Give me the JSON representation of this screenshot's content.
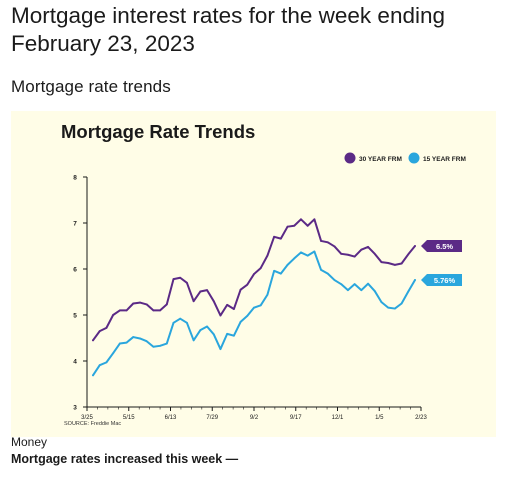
{
  "article": {
    "headline": "Mortgage interest rates for the week ending February 23, 2023",
    "section_title": "Mortgage rate trends",
    "image_source": "Money",
    "image_caption": "Mortgage rates increased this week —"
  },
  "colors": {
    "series_30yr": "#5b2a86",
    "series_15yr": "#2aa6dd",
    "figure_background": "#fffde7",
    "axis": "#1a1a1a",
    "text": "#1b1b1b"
  },
  "chart_data": {
    "type": "line",
    "title": "Mortgage Rate Trends",
    "source": "SOURCE: Freddie Mac",
    "xlabel": "",
    "ylabel": "",
    "ylim": [
      3,
      8
    ],
    "yticks": [
      "3",
      "4",
      "5",
      "6",
      "7",
      "8"
    ],
    "xtick_labels": [
      "3/25",
      "5/15",
      "6/13",
      "7/29",
      "9/2",
      "9/17",
      "12/1",
      "1/5",
      "2/23"
    ],
    "grid": false,
    "legend_position": "top-right",
    "series": [
      {
        "name": "30 YEAR FRM",
        "end_label": "6.5%",
        "values": [
          4.45,
          4.65,
          4.72,
          5.0,
          5.1,
          5.1,
          5.25,
          5.27,
          5.23,
          5.1,
          5.1,
          5.23,
          5.78,
          5.81,
          5.7,
          5.3,
          5.51,
          5.54,
          5.3,
          4.99,
          5.22,
          5.13,
          5.55,
          5.66,
          5.89,
          6.02,
          6.29,
          6.7,
          6.66,
          6.92,
          6.94,
          7.08,
          6.94,
          7.08,
          6.61,
          6.58,
          6.49,
          6.33,
          6.31,
          6.27,
          6.42,
          6.48,
          6.33,
          6.15,
          6.13,
          6.09,
          6.12,
          6.32,
          6.5
        ]
      },
      {
        "name": "15 YEAR FRM",
        "end_label": "5.76%",
        "values": [
          3.69,
          3.91,
          3.97,
          4.17,
          4.38,
          4.4,
          4.52,
          4.49,
          4.43,
          4.31,
          4.33,
          4.38,
          4.83,
          4.92,
          4.83,
          4.45,
          4.67,
          4.75,
          4.58,
          4.26,
          4.59,
          4.55,
          4.85,
          4.98,
          5.16,
          5.21,
          5.44,
          5.96,
          5.9,
          6.09,
          6.23,
          6.36,
          6.29,
          6.38,
          5.98,
          5.9,
          5.76,
          5.67,
          5.54,
          5.67,
          5.54,
          5.68,
          5.52,
          5.28,
          5.16,
          5.14,
          5.25,
          5.51,
          5.76
        ]
      }
    ]
  }
}
